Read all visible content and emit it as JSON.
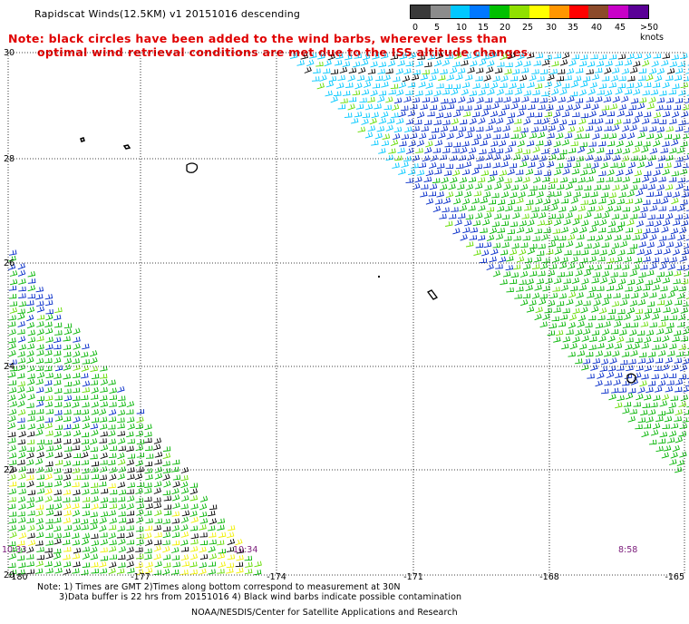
{
  "title": "Rapidscat Winds(12.5KM) v1 20151016 descending",
  "note": {
    "line1": "Note: black circles have been added to the wind barbs, wherever less than",
    "line2": "optimal wind retrieval conditions are met due to the ISS altitude changes."
  },
  "legend": {
    "unit": "knots",
    "labels": [
      "0",
      "5",
      "10",
      "15",
      "20",
      "25",
      "30",
      "35",
      "40",
      "45",
      ">50"
    ],
    "colors": [
      "#3a3a3a",
      "#8c8c8c",
      "#00c8ff",
      "#0078ff",
      "#00c000",
      "#90e000",
      "#ffff00",
      "#ff9600",
      "#ff0000",
      "#8c4a2a",
      "#c800c8",
      "#5a0096"
    ]
  },
  "axes": {
    "lat_labels": [
      "30",
      "28",
      "26",
      "24",
      "22",
      "20"
    ],
    "lon_labels": [
      "-180",
      "-177",
      "-174",
      "-171",
      "-168",
      "-165"
    ]
  },
  "pass_times": [
    "10:33",
    "10:34",
    "8:58"
  ],
  "footer": {
    "line1": "Note: 1) Times are GMT 2)Times along bottom correspond to measurement at 30N",
    "line2": "3)Data buffer is 22 hrs from 20151016 4) Black wind barbs indicate possible contamination",
    "credit": "NOAA/NESDIS/Center for Satellite Applications and Research"
  }
}
